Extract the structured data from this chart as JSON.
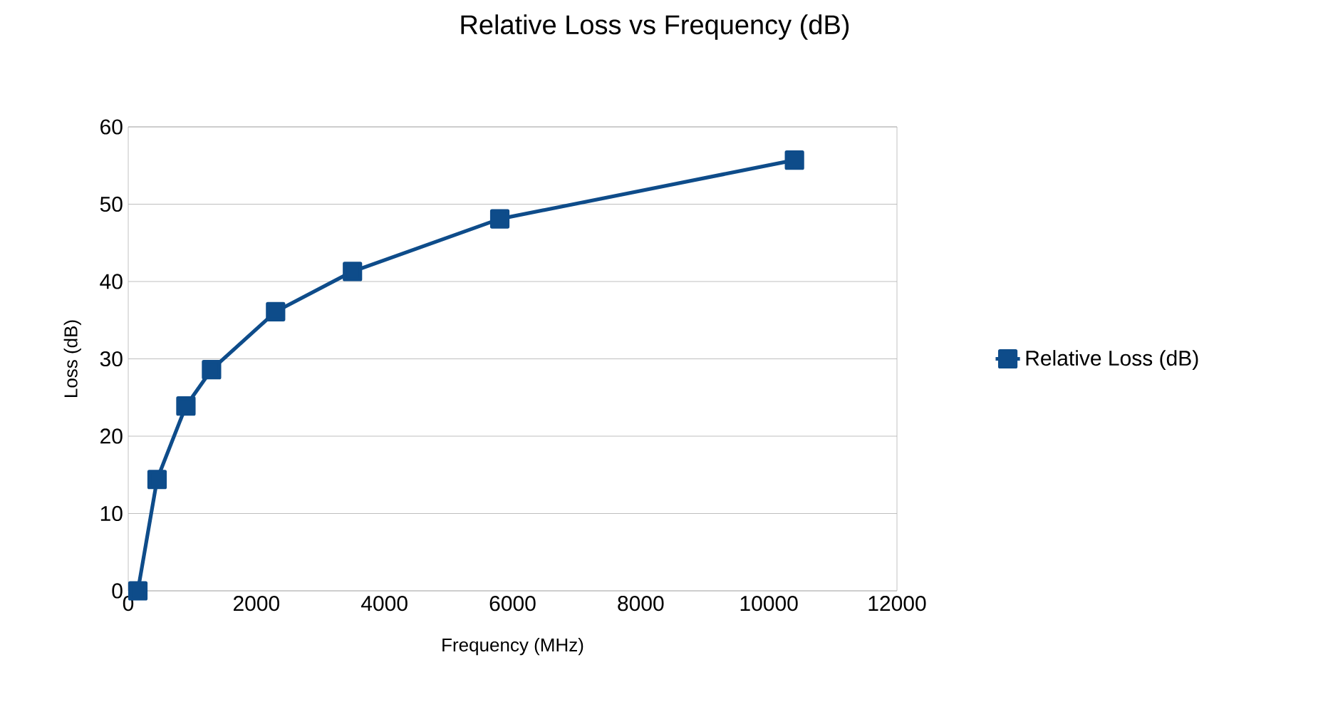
{
  "chart_data": {
    "type": "line",
    "title": "Relative Loss vs Frequency (dB)",
    "xlabel": "Frequency (MHz)",
    "ylabel": "Loss (dB)",
    "x": [
      150,
      450,
      900,
      1300,
      2300,
      3500,
      5800,
      10400
    ],
    "series": [
      {
        "name": "Relative Loss (dB)",
        "color": "#0e4c8a",
        "values": [
          0,
          14.4,
          23.9,
          28.6,
          36.1,
          41.3,
          48.1,
          55.7
        ]
      }
    ],
    "xlim": [
      0,
      12000
    ],
    "xticks": [
      0,
      2000,
      4000,
      6000,
      8000,
      10000,
      12000
    ],
    "ylim": [
      0,
      60
    ],
    "yticks": [
      0,
      10,
      20,
      30,
      40,
      50,
      60
    ],
    "grid": "y",
    "legend": "right",
    "marker": "square",
    "line_style": "solid"
  }
}
